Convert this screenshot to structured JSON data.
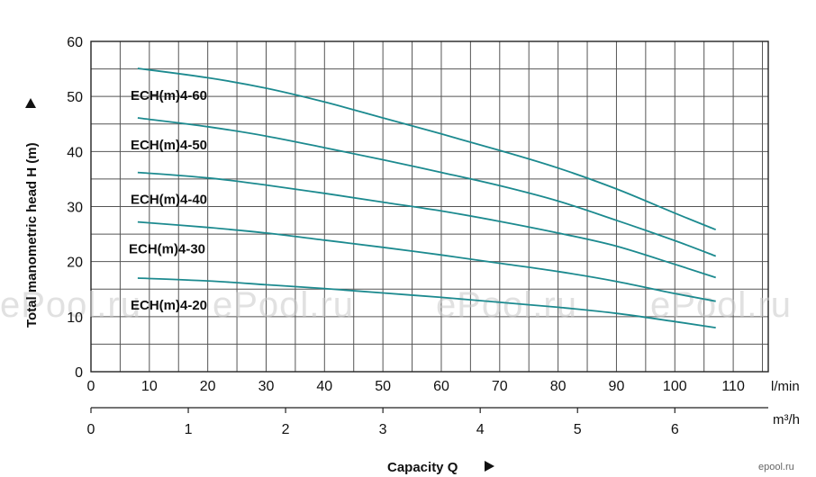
{
  "chart_data": {
    "type": "line",
    "ylabel": "Total manometric head H (m)",
    "xlabel": "Capacity Q",
    "x_unit_primary": "l/min",
    "x_unit_secondary": "m³/h",
    "xlim": [
      0,
      116
    ],
    "ylim": [
      0,
      60
    ],
    "x_ticks": [
      0,
      10,
      20,
      30,
      40,
      50,
      60,
      70,
      80,
      90,
      100,
      110
    ],
    "x_ticks_m3h": [
      0,
      1,
      2,
      3,
      4,
      5,
      6
    ],
    "y_ticks": [
      0,
      10,
      20,
      30,
      40,
      50,
      60
    ],
    "grid": true,
    "series": [
      {
        "name": "ECH(m)4-60",
        "x": [
          8,
          20,
          30,
          40,
          50,
          60,
          70,
          80,
          90,
          100,
          107
        ],
        "y": [
          55.1,
          53.4,
          51.5,
          49.0,
          46.1,
          43.2,
          40.2,
          37.0,
          33.2,
          28.8,
          25.8
        ]
      },
      {
        "name": "ECH(m)4-50",
        "x": [
          8,
          20,
          30,
          40,
          50,
          60,
          70,
          80,
          90,
          100,
          107
        ],
        "y": [
          46.1,
          44.5,
          42.8,
          40.7,
          38.5,
          36.2,
          33.8,
          31.0,
          27.5,
          23.8,
          21.0
        ]
      },
      {
        "name": "ECH(m)4-40",
        "x": [
          8,
          20,
          30,
          40,
          50,
          60,
          70,
          80,
          90,
          100,
          107
        ],
        "y": [
          36.2,
          35.2,
          33.9,
          32.4,
          30.8,
          29.2,
          27.3,
          25.2,
          22.8,
          19.5,
          17.1
        ]
      },
      {
        "name": "ECH(m)4-30",
        "x": [
          8,
          20,
          30,
          40,
          50,
          60,
          70,
          80,
          90,
          100,
          107
        ],
        "y": [
          27.2,
          26.2,
          25.2,
          23.9,
          22.6,
          21.2,
          19.7,
          18.2,
          16.4,
          14.2,
          12.8
        ]
      },
      {
        "name": "ECH(m)4-20",
        "x": [
          8,
          20,
          30,
          40,
          50,
          60,
          70,
          80,
          90,
          100,
          107
        ],
        "y": [
          17.0,
          16.5,
          15.8,
          15.1,
          14.3,
          13.5,
          12.6,
          11.7,
          10.6,
          9.1,
          8.0
        ]
      }
    ],
    "line_color": "#1c8a8f"
  },
  "watermarks": [
    "ePool.ru",
    "ePool.ru",
    "ePool.ru",
    "ePool.ru"
  ],
  "logo_text": "epool.ru"
}
